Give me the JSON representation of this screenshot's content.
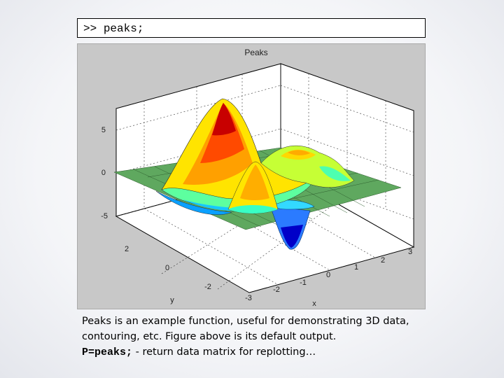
{
  "command": {
    "prompt": ">>",
    "text": "peaks;"
  },
  "figure": {
    "title": "Peaks",
    "z_ticks": [
      "5",
      "0",
      "-5"
    ],
    "y_ticks": [
      "2",
      "0",
      "-2"
    ],
    "x_ticks": [
      "-3",
      "-2",
      "-1",
      "0",
      "1",
      "2",
      "3"
    ],
    "xlabel": "x",
    "ylabel": "y",
    "colormap": [
      "#00008f",
      "#0050ff",
      "#00dfff",
      "#70ff8f",
      "#ffef00",
      "#ff6000",
      "#8f0000"
    ],
    "base_color": "#5fa85f"
  },
  "caption": {
    "line1": "Peaks is an example function, useful for demonstrating 3D data,",
    "line2": "contouring, etc. Figure above is its default output.",
    "code": "P=peaks;",
    "line3_rest": " - return data matrix for replotting…"
  }
}
